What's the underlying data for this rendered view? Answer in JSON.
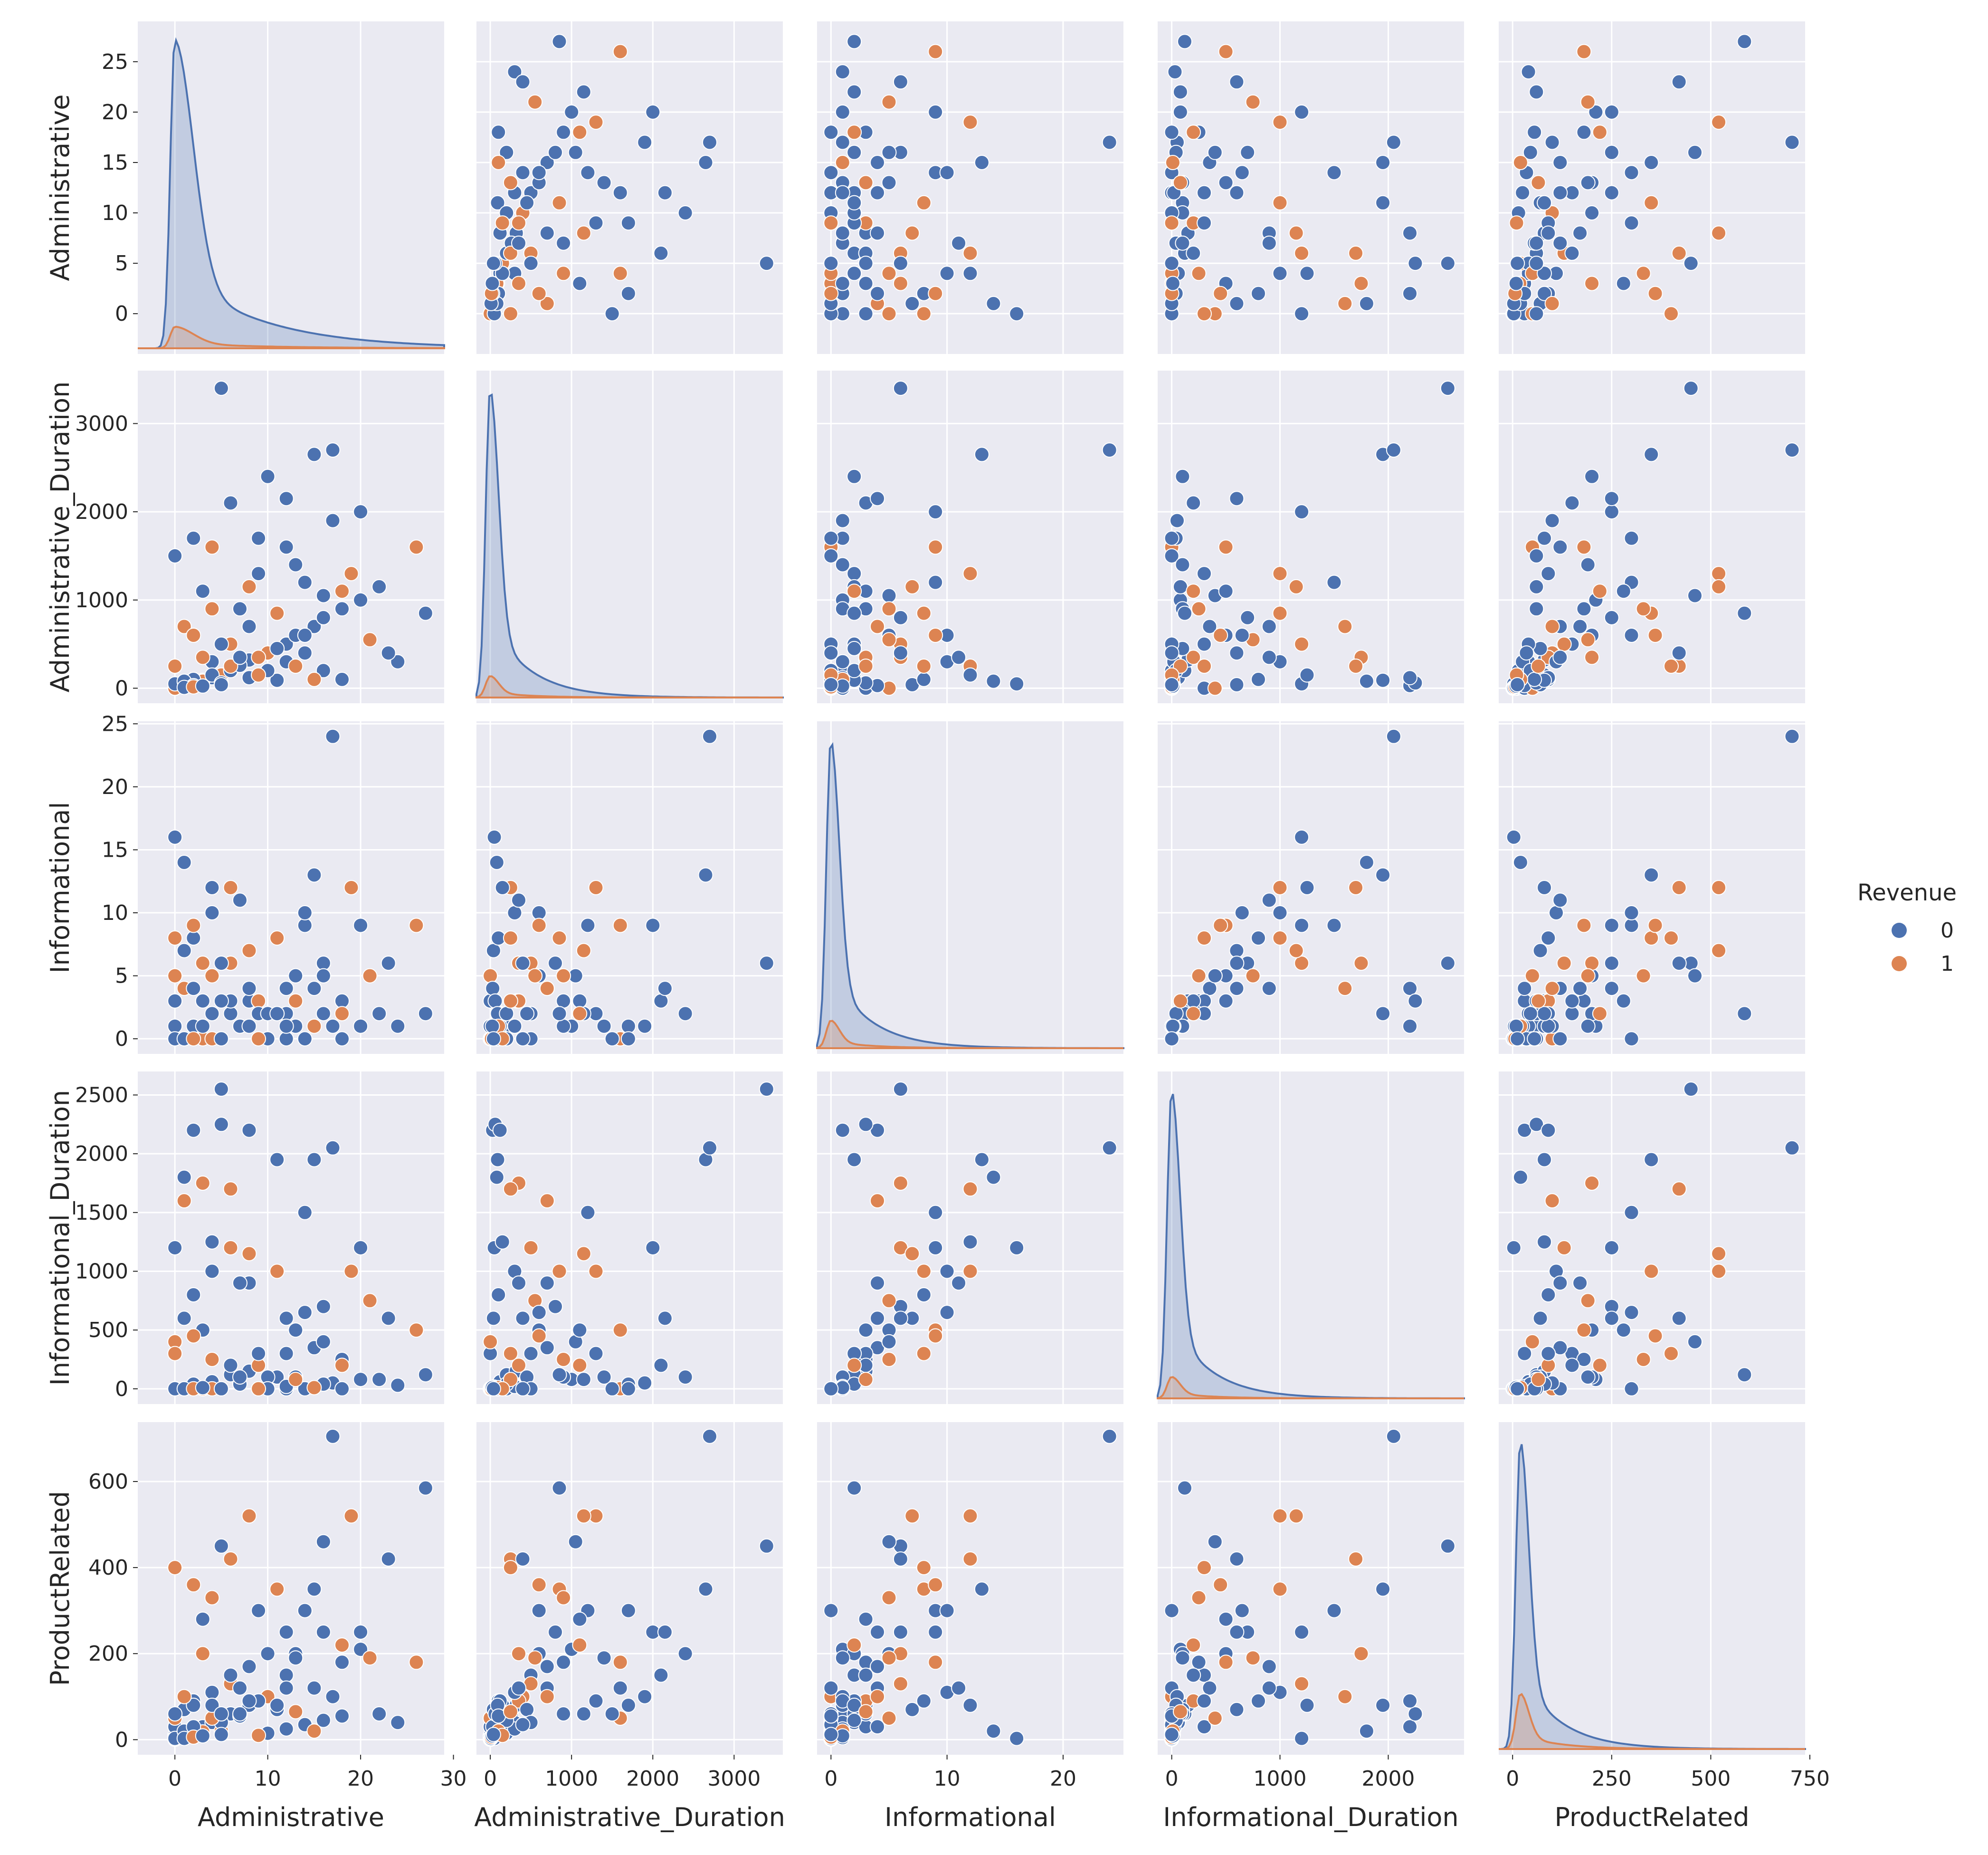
{
  "chart_data": {
    "type": "pairplot",
    "variables": [
      "Administrative",
      "Administrative_Duration",
      "Informational",
      "Informational_Duration",
      "ProductRelated"
    ],
    "hue": "Revenue",
    "legend": {
      "title": "Revenue",
      "placement": "right",
      "entries": [
        {
          "label": "0",
          "color": "#4c72b0"
        },
        {
          "label": "1",
          "color": "#dd8452"
        }
      ]
    },
    "style": {
      "background": "#eaeaf2",
      "grid": true,
      "grid_color": "#ffffff"
    },
    "axes": {
      "Administrative": {
        "range": [
          -4,
          29
        ],
        "ticks": [
          0,
          10,
          20,
          30
        ],
        "y_ticks": [
          0,
          5,
          10,
          15,
          20,
          25
        ]
      },
      "Administrative_Duration": {
        "range": [
          -170,
          3600
        ],
        "ticks": [
          0,
          1000,
          2000,
          3000
        ]
      },
      "Informational": {
        "range": [
          -1.2,
          25.2
        ],
        "ticks": [
          0,
          10,
          20
        ],
        "y_ticks": [
          0,
          5,
          10,
          15,
          20,
          25
        ]
      },
      "Informational_Duration": {
        "range": [
          -130,
          2700
        ],
        "ticks": [
          0,
          1000,
          2000
        ],
        "y_ticks": [
          0,
          500,
          1000,
          1500,
          2000,
          2500
        ]
      },
      "ProductRelated": {
        "range": [
          -35,
          738
        ],
        "ticks": [
          0,
          250,
          500,
          750
        ],
        "y_ticks": [
          0,
          200,
          400,
          600
        ]
      }
    },
    "kde_peaks": [
      {
        "variable": "Administrative",
        "mode": 0,
        "peak_0": 1.0,
        "peak_1": 0.07
      },
      {
        "variable": "Administrative_Duration",
        "mode": 0,
        "peak_0": 1.0,
        "peak_1": 0.07
      },
      {
        "variable": "Informational",
        "mode": 0,
        "peak_0": 1.0,
        "peak_1": 0.09
      },
      {
        "variable": "Informational_Duration",
        "mode": 0,
        "peak_0": 1.0,
        "peak_1": 0.07
      },
      {
        "variable": "ProductRelated",
        "mode": 20,
        "peak_0": 1.0,
        "peak_1": 0.18
      }
    ],
    "records": [
      [
        0,
        0,
        0,
        0,
        1,
        0
      ],
      [
        0,
        0,
        0,
        0,
        2,
        0
      ],
      [
        0,
        0,
        0,
        0,
        10,
        0
      ],
      [
        0,
        0,
        1,
        0,
        5,
        0
      ],
      [
        1,
        20,
        0,
        0,
        7,
        0
      ],
      [
        1,
        30,
        0,
        0,
        15,
        1
      ],
      [
        2,
        60,
        1,
        20,
        25,
        0
      ],
      [
        3,
        90,
        0,
        0,
        30,
        0
      ],
      [
        4,
        120,
        2,
        60,
        40,
        0
      ],
      [
        5,
        150,
        0,
        0,
        20,
        1
      ],
      [
        2,
        45,
        1,
        15,
        12,
        0
      ],
      [
        6,
        200,
        2,
        120,
        60,
        0
      ],
      [
        8,
        320,
        3,
        150,
        80,
        0
      ],
      [
        10,
        400,
        0,
        0,
        100,
        1
      ],
      [
        12,
        500,
        2,
        300,
        150,
        0
      ],
      [
        15,
        700,
        4,
        350,
        120,
        0
      ],
      [
        3,
        80,
        0,
        0,
        18,
        1
      ],
      [
        7,
        260,
        1,
        40,
        55,
        0
      ],
      [
        9,
        350,
        3,
        200,
        90,
        1
      ],
      [
        11,
        450,
        2,
        100,
        70,
        0
      ],
      [
        13,
        600,
        5,
        500,
        200,
        0
      ],
      [
        16,
        800,
        6,
        700,
        250,
        0
      ],
      [
        18,
        900,
        3,
        250,
        180,
        0
      ],
      [
        20,
        1000,
        1,
        80,
        210,
        0
      ],
      [
        0,
        0,
        3,
        300,
        30,
        0
      ],
      [
        0,
        0,
        5,
        400,
        50,
        1
      ],
      [
        1,
        40,
        7,
        600,
        70,
        0
      ],
      [
        2,
        100,
        8,
        800,
        90,
        0
      ],
      [
        4,
        300,
        10,
        1000,
        110,
        0
      ],
      [
        6,
        500,
        6,
        1200,
        130,
        1
      ],
      [
        8,
        700,
        4,
        900,
        170,
        0
      ],
      [
        14,
        1200,
        9,
        1500,
        300,
        0
      ],
      [
        5,
        500,
        0,
        0,
        40,
        0
      ],
      [
        7,
        900,
        1,
        100,
        60,
        0
      ],
      [
        9,
        1300,
        2,
        300,
        90,
        0
      ],
      [
        12,
        1600,
        0,
        0,
        120,
        0
      ],
      [
        17,
        1900,
        1,
        50,
        100,
        0
      ],
      [
        22,
        1150,
        2,
        80,
        60,
        0
      ],
      [
        24,
        300,
        1,
        30,
        40,
        0
      ],
      [
        4,
        1600,
        0,
        0,
        50,
        1
      ],
      [
        2,
        1700,
        1,
        40,
        80,
        0
      ],
      [
        0,
        1500,
        0,
        0,
        60,
        0
      ],
      [
        6,
        2100,
        3,
        200,
        150,
        0
      ],
      [
        10,
        2400,
        2,
        100,
        200,
        0
      ],
      [
        15,
        2650,
        13,
        1950,
        350,
        0
      ],
      [
        17,
        2700,
        24,
        2050,
        705,
        0
      ],
      [
        20,
        2000,
        9,
        1200,
        250,
        0
      ],
      [
        5,
        3400,
        6,
        2550,
        450,
        0
      ],
      [
        19,
        1300,
        12,
        1000,
        520,
        1
      ],
      [
        26,
        1600,
        9,
        500,
        180,
        1
      ],
      [
        1,
        700,
        4,
        1600,
        100,
        1
      ],
      [
        3,
        350,
        6,
        1750,
        200,
        1
      ],
      [
        6,
        250,
        12,
        1700,
        420,
        1
      ],
      [
        8,
        1150,
        7,
        1150,
        520,
        1
      ],
      [
        11,
        850,
        8,
        1000,
        350,
        1
      ],
      [
        21,
        550,
        5,
        750,
        190,
        1
      ],
      [
        27,
        850,
        2,
        120,
        585,
        0
      ],
      [
        23,
        400,
        6,
        600,
        420,
        0
      ],
      [
        0,
        50,
        16,
        1200,
        3,
        0
      ],
      [
        1,
        80,
        14,
        1800,
        20,
        0
      ],
      [
        4,
        150,
        12,
        1250,
        80,
        0
      ],
      [
        7,
        350,
        11,
        900,
        120,
        0
      ],
      [
        14,
        600,
        10,
        650,
        300,
        0
      ],
      [
        16,
        1050,
        5,
        400,
        460,
        0
      ],
      [
        2,
        30,
        4,
        2200,
        30,
        0
      ],
      [
        5,
        60,
        3,
        2250,
        60,
        0
      ],
      [
        8,
        120,
        1,
        2200,
        90,
        0
      ],
      [
        11,
        90,
        2,
        1950,
        80,
        0
      ],
      [
        9,
        1700,
        0,
        0,
        300,
        0
      ],
      [
        13,
        1400,
        1,
        100,
        190,
        0
      ],
      [
        3,
        1100,
        3,
        500,
        280,
        0
      ],
      [
        12,
        2150,
        4,
        600,
        250,
        0
      ],
      [
        0,
        250,
        8,
        300,
        400,
        1
      ],
      [
        2,
        600,
        9,
        450,
        360,
        1
      ],
      [
        4,
        900,
        5,
        250,
        330,
        1
      ],
      [
        18,
        1100,
        2,
        200,
        220,
        1
      ],
      [
        10,
        200,
        0,
        0,
        15,
        0
      ],
      [
        12,
        300,
        1,
        20,
        25,
        0
      ],
      [
        14,
        400,
        0,
        0,
        35,
        0
      ],
      [
        16,
        200,
        2,
        40,
        45,
        0
      ],
      [
        18,
        100,
        0,
        0,
        55,
        0
      ],
      [
        15,
        100,
        1,
        10,
        20,
        1
      ],
      [
        13,
        250,
        3,
        80,
        65,
        1
      ],
      [
        9,
        150,
        0,
        0,
        10,
        1
      ],
      [
        1,
        10,
        0,
        0,
        3,
        0
      ],
      [
        2,
        15,
        0,
        0,
        6,
        1
      ],
      [
        3,
        25,
        1,
        10,
        9,
        0
      ],
      [
        5,
        40,
        0,
        0,
        12,
        0
      ]
    ]
  }
}
